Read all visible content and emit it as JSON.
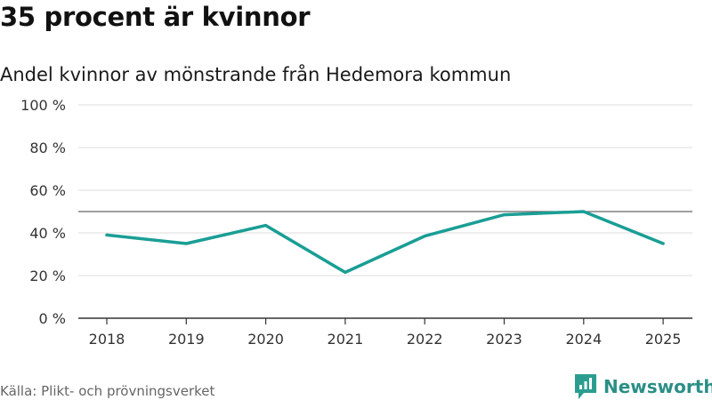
{
  "title": "35 procent är kvinnor",
  "subtitle": "Andel kvinnor av mönstrande från Hedemora kommun",
  "source": "Källa: Plikt- och prövningsverket",
  "brand": {
    "name": "Newsworthy",
    "icon": "newsworthy-logo-icon",
    "color": "#2a9d90"
  },
  "chart_data": {
    "type": "line",
    "title": "35 procent är kvinnor",
    "subtitle": "Andel kvinnor av mönstrande från Hedemora kommun",
    "xlabel": "",
    "ylabel": "",
    "categories": [
      "2018",
      "2019",
      "2020",
      "2021",
      "2022",
      "2023",
      "2024",
      "2025"
    ],
    "series": [
      {
        "name": "Andel kvinnor",
        "color": "#1a9e95",
        "values": [
          39,
          35,
          43.5,
          21.5,
          38.5,
          48.5,
          50,
          35
        ]
      }
    ],
    "ylim": [
      0,
      100
    ],
    "yticks": [
      0,
      20,
      40,
      60,
      80,
      100
    ],
    "ytick_labels": [
      "0 %",
      "20 %",
      "40 %",
      "60 %",
      "80 %",
      "100 %"
    ],
    "reference_line": 50,
    "grid": true,
    "legend": "none"
  }
}
